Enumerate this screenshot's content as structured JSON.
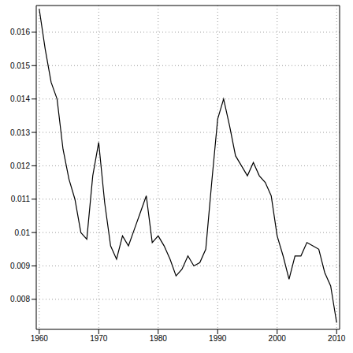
{
  "chart_data": {
    "type": "line",
    "x": [
      1960,
      1961,
      1962,
      1963,
      1964,
      1965,
      1966,
      1967,
      1968,
      1969,
      1970,
      1971,
      1972,
      1973,
      1974,
      1975,
      1976,
      1977,
      1978,
      1979,
      1980,
      1981,
      1982,
      1983,
      1984,
      1985,
      1986,
      1987,
      1988,
      1989,
      1990,
      1991,
      1992,
      1993,
      1994,
      1995,
      1996,
      1997,
      1998,
      1999,
      2000,
      2001,
      2002,
      2003,
      2004,
      2005,
      2006,
      2007,
      2008,
      2009,
      2010
    ],
    "values": [
      0.0167,
      0.0155,
      0.0145,
      0.014,
      0.0125,
      0.0116,
      0.011,
      0.01,
      0.0098,
      0.0117,
      0.0127,
      0.0109,
      0.0096,
      0.0092,
      0.0099,
      0.0096,
      0.0101,
      0.0106,
      0.0111,
      0.0097,
      0.0099,
      0.0096,
      0.0092,
      0.0087,
      0.0089,
      0.0093,
      0.009,
      0.0091,
      0.0095,
      0.0115,
      0.0134,
      0.014,
      0.0132,
      0.0123,
      0.012,
      0.0117,
      0.0121,
      0.0117,
      0.0115,
      0.0111,
      0.0099,
      0.0093,
      0.0086,
      0.0093,
      0.0093,
      0.0097,
      0.0096,
      0.0095,
      0.0088,
      0.0084,
      0.0073
    ],
    "color": "#000000",
    "xlim": [
      1959.5,
      2010.5
    ],
    "xticks": [
      1960,
      1970,
      1980,
      1990,
      2000,
      2010
    ],
    "ylim": [
      0.0071,
      0.0168
    ],
    "yticks": [
      0.008,
      0.009,
      0.01,
      0.011,
      0.012,
      0.013,
      0.014,
      0.015,
      0.016
    ],
    "grid": true
  }
}
